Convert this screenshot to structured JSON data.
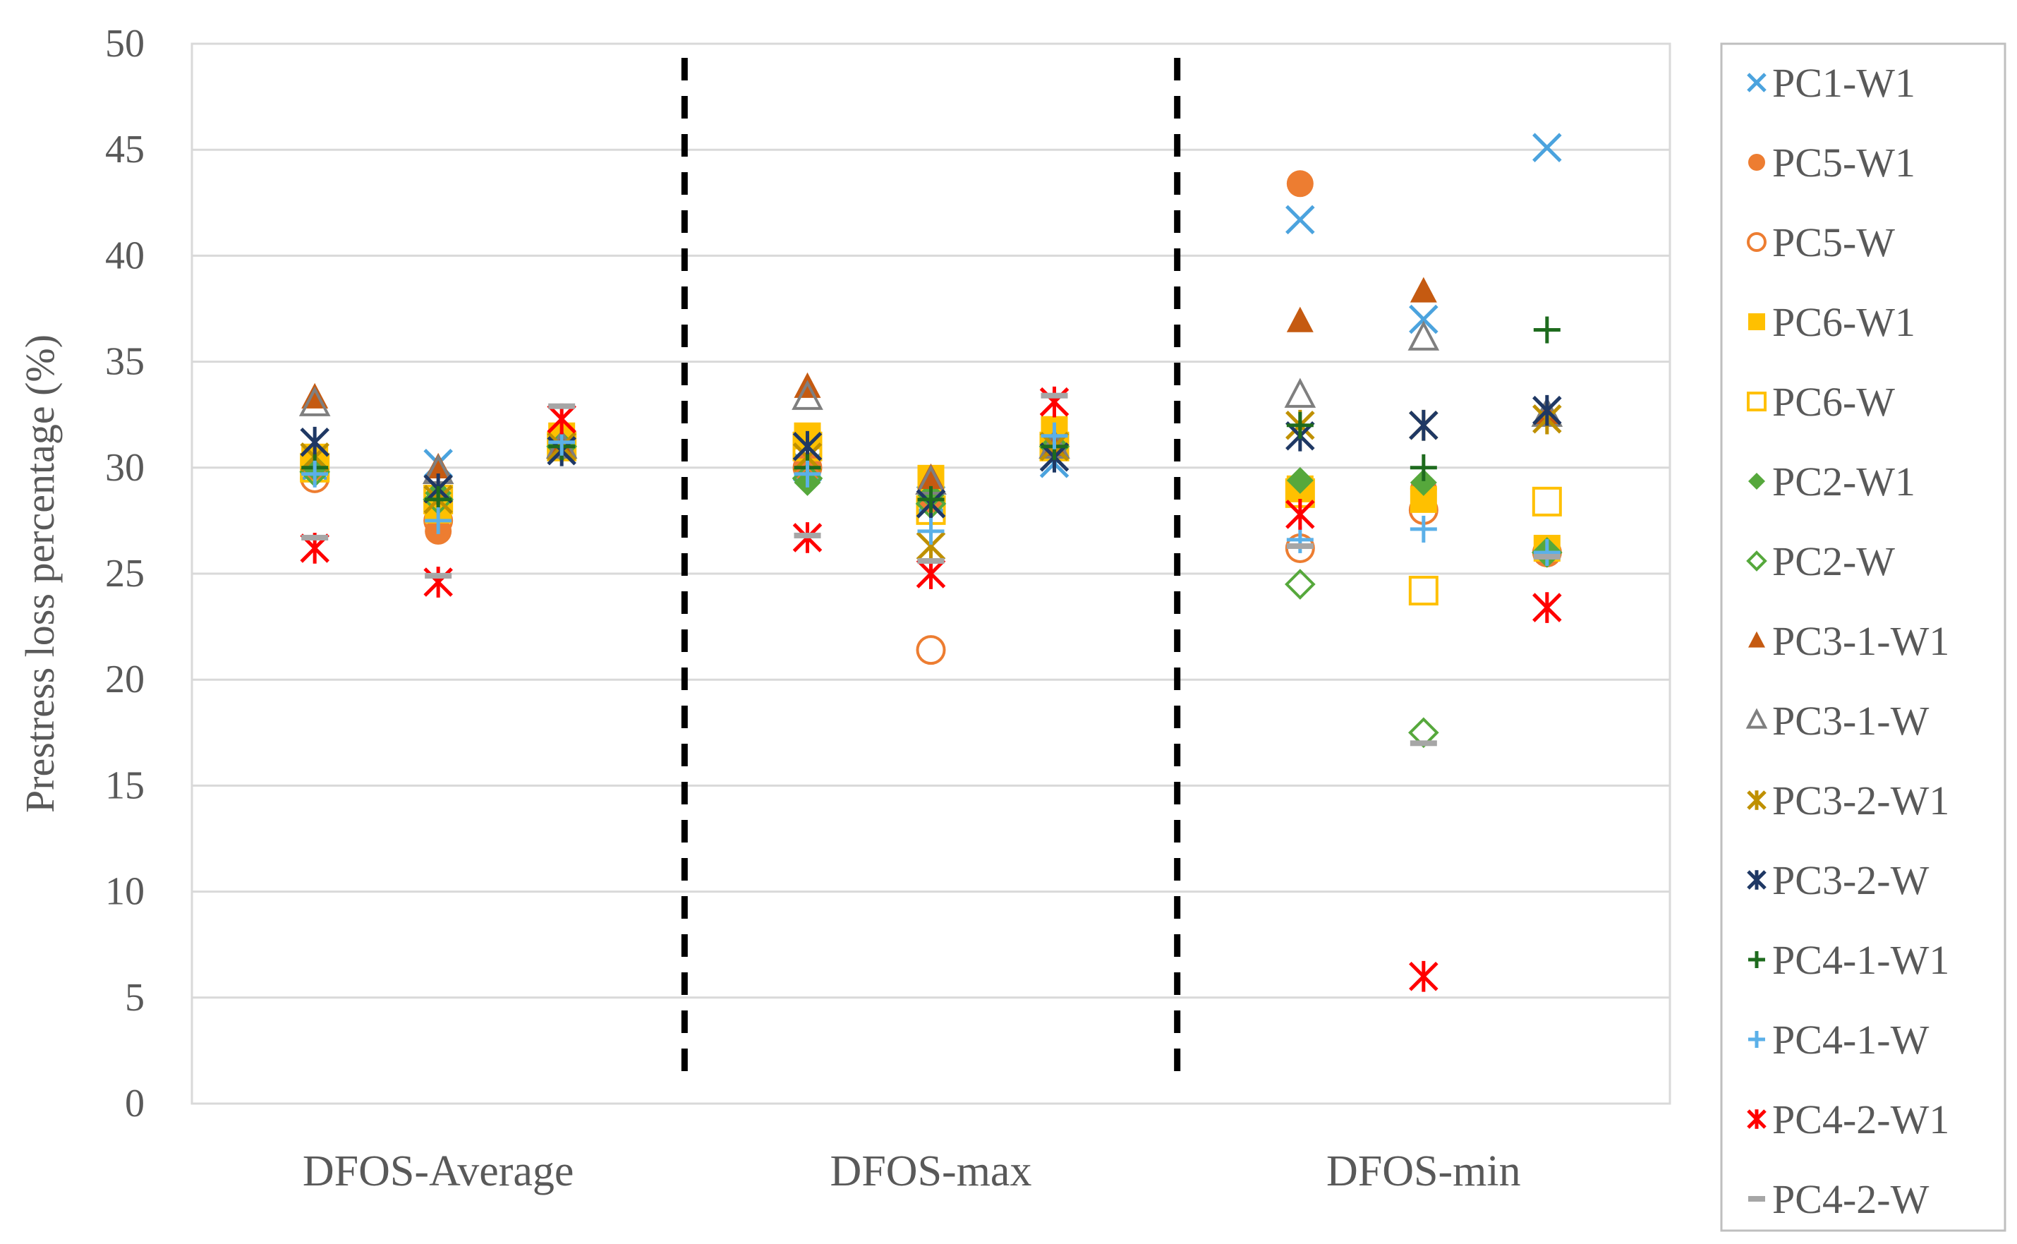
{
  "chart_data": {
    "type": "scatter",
    "title": "",
    "xlabel": "",
    "ylabel": "Prestress loss percentage (%)",
    "ylim": [
      0,
      50
    ],
    "yticks": [
      0,
      5,
      10,
      15,
      20,
      25,
      30,
      35,
      40,
      45,
      50
    ],
    "categories": [
      "DFOS-Average",
      "DFOS-max",
      "DFOS-min"
    ],
    "sub_positions": 3,
    "grid": true,
    "legend_position": "right",
    "separators": [
      {
        "after_category": "DFOS-Average",
        "style": "dashed"
      },
      {
        "after_category": "DFOS-max",
        "style": "dashed"
      }
    ],
    "series": [
      {
        "name": "PC1-W1",
        "color": "#4BA3DE",
        "marker": "x",
        "points": [
          [
            0,
            0,
            30.0
          ],
          [
            0,
            1,
            30.2
          ],
          [
            0,
            2,
            31.0
          ],
          [
            1,
            0,
            30.0
          ],
          [
            1,
            1,
            28.5
          ],
          [
            1,
            2,
            30.2
          ],
          [
            2,
            0,
            41.7
          ],
          [
            2,
            1,
            37.0
          ],
          [
            2,
            2,
            45.1
          ]
        ]
      },
      {
        "name": "PC5-W1",
        "color": "#ED7D31",
        "marker": "circle",
        "points": [
          [
            0,
            0,
            30.0
          ],
          [
            0,
            1,
            27.0
          ],
          [
            0,
            2,
            31.0
          ],
          [
            1,
            0,
            30.0
          ],
          [
            1,
            1,
            28.5
          ],
          [
            1,
            2,
            31.0
          ],
          [
            2,
            0,
            43.4
          ],
          [
            2,
            1,
            29.0
          ],
          [
            2,
            2,
            26.0
          ]
        ]
      },
      {
        "name": "PC5-W",
        "color": "#ED7D31",
        "marker": "circle-open",
        "points": [
          [
            0,
            0,
            29.5
          ],
          [
            0,
            1,
            27.5
          ],
          [
            0,
            2,
            31.0
          ],
          [
            1,
            0,
            30.0
          ],
          [
            1,
            1,
            21.4
          ],
          [
            1,
            2,
            31.0
          ],
          [
            2,
            0,
            26.2
          ],
          [
            2,
            1,
            28.0
          ],
          [
            2,
            2,
            26.0
          ]
        ]
      },
      {
        "name": "PC6-W1",
        "color": "#FFC000",
        "marker": "square",
        "points": [
          [
            0,
            0,
            30.5
          ],
          [
            0,
            1,
            28.0
          ],
          [
            0,
            2,
            31.5
          ],
          [
            1,
            0,
            31.5
          ],
          [
            1,
            1,
            29.5
          ],
          [
            1,
            2,
            31.8
          ],
          [
            2,
            0,
            29.0
          ],
          [
            2,
            1,
            28.5
          ],
          [
            2,
            2,
            26.2
          ]
        ]
      },
      {
        "name": "PC6-W",
        "color": "#FFC000",
        "marker": "square-open",
        "points": [
          [
            0,
            0,
            30.0
          ],
          [
            0,
            1,
            28.5
          ],
          [
            0,
            2,
            31.0
          ],
          [
            1,
            0,
            31.0
          ],
          [
            1,
            1,
            28.0
          ],
          [
            1,
            2,
            31.0
          ],
          [
            2,
            0,
            28.8
          ],
          [
            2,
            1,
            24.2
          ],
          [
            2,
            2,
            28.4
          ]
        ]
      },
      {
        "name": "PC2-W1",
        "color": "#56A83C",
        "marker": "diamond",
        "points": [
          [
            0,
            0,
            30.0
          ],
          [
            0,
            1,
            28.8
          ],
          [
            0,
            2,
            31.0
          ],
          [
            1,
            0,
            29.3
          ],
          [
            1,
            1,
            28.7
          ],
          [
            1,
            2,
            31.0
          ],
          [
            2,
            0,
            29.4
          ],
          [
            2,
            1,
            29.3
          ],
          [
            2,
            2,
            26.0
          ]
        ]
      },
      {
        "name": "PC2-W",
        "color": "#56A83C",
        "marker": "diamond-open",
        "points": [
          [
            0,
            0,
            29.8
          ],
          [
            0,
            1,
            28.5
          ],
          [
            0,
            2,
            31.0
          ],
          [
            1,
            0,
            29.5
          ],
          [
            1,
            1,
            28.3
          ],
          [
            1,
            2,
            31.0
          ],
          [
            2,
            0,
            24.5
          ],
          [
            2,
            1,
            17.5
          ],
          [
            2,
            2,
            26.0
          ]
        ]
      },
      {
        "name": "PC3-1-W1",
        "color": "#C55A11",
        "marker": "triangle",
        "points": [
          [
            0,
            0,
            33.3
          ],
          [
            0,
            1,
            30.0
          ],
          [
            0,
            2,
            31.0
          ],
          [
            1,
            0,
            33.8
          ],
          [
            1,
            1,
            29.5
          ],
          [
            1,
            2,
            31.0
          ],
          [
            2,
            0,
            36.9
          ],
          [
            2,
            1,
            38.3
          ],
          [
            2,
            2,
            32.5
          ]
        ]
      },
      {
        "name": "PC3-1-W",
        "color": "#7F7F7F",
        "marker": "triangle-open",
        "points": [
          [
            0,
            0,
            33.0
          ],
          [
            0,
            1,
            29.8
          ],
          [
            0,
            2,
            31.0
          ],
          [
            1,
            0,
            33.3
          ],
          [
            1,
            1,
            29.3
          ],
          [
            1,
            2,
            31.0
          ],
          [
            2,
            0,
            33.4
          ],
          [
            2,
            1,
            36.1
          ],
          [
            2,
            2,
            32.5
          ]
        ]
      },
      {
        "name": "PC3-2-W1",
        "color": "#BF9000",
        "marker": "star",
        "points": [
          [
            0,
            0,
            30.5
          ],
          [
            0,
            1,
            28.5
          ],
          [
            0,
            2,
            31.0
          ],
          [
            1,
            0,
            30.5
          ],
          [
            1,
            1,
            26.3
          ],
          [
            1,
            2,
            31.0
          ],
          [
            2,
            0,
            32.0
          ],
          [
            2,
            1,
            32.0
          ],
          [
            2,
            2,
            32.3
          ]
        ]
      },
      {
        "name": "PC3-2-W",
        "color": "#1F3864",
        "marker": "star",
        "points": [
          [
            0,
            0,
            31.2
          ],
          [
            0,
            1,
            29.0
          ],
          [
            0,
            2,
            30.8
          ],
          [
            1,
            0,
            31.0
          ],
          [
            1,
            1,
            28.3
          ],
          [
            1,
            2,
            30.5
          ],
          [
            2,
            0,
            31.5
          ],
          [
            2,
            1,
            32.0
          ],
          [
            2,
            2,
            32.7
          ]
        ]
      },
      {
        "name": "PC4-1-W1",
        "color": "#1E6B1E",
        "marker": "plus",
        "points": [
          [
            0,
            0,
            30.0
          ],
          [
            0,
            1,
            28.5
          ],
          [
            0,
            2,
            31.0
          ],
          [
            1,
            0,
            30.0
          ],
          [
            1,
            1,
            28.5
          ],
          [
            1,
            2,
            31.0
          ],
          [
            2,
            0,
            32.0
          ],
          [
            2,
            1,
            30.0
          ],
          [
            2,
            2,
            36.5
          ]
        ]
      },
      {
        "name": "PC4-1-W",
        "color": "#5BB0E8",
        "marker": "plus",
        "points": [
          [
            0,
            0,
            29.7
          ],
          [
            0,
            1,
            27.5
          ],
          [
            0,
            2,
            31.2
          ],
          [
            1,
            0,
            29.7
          ],
          [
            1,
            1,
            27.0
          ],
          [
            1,
            2,
            31.5
          ],
          [
            2,
            0,
            26.6
          ],
          [
            2,
            1,
            27.1
          ],
          [
            2,
            2,
            26.0
          ]
        ]
      },
      {
        "name": "PC4-2-W1",
        "color": "#FF0000",
        "marker": "star",
        "points": [
          [
            0,
            0,
            26.2
          ],
          [
            0,
            1,
            24.6
          ],
          [
            0,
            2,
            32.3
          ],
          [
            1,
            0,
            26.7
          ],
          [
            1,
            1,
            25.0
          ],
          [
            1,
            2,
            33.1
          ],
          [
            2,
            0,
            27.8
          ],
          [
            2,
            1,
            6.0
          ],
          [
            2,
            2,
            23.4
          ]
        ]
      },
      {
        "name": "PC4-2-W",
        "color": "#A6A6A6",
        "marker": "dash",
        "points": [
          [
            0,
            0,
            26.7
          ],
          [
            0,
            1,
            24.9
          ],
          [
            0,
            2,
            32.9
          ],
          [
            1,
            0,
            26.8
          ],
          [
            1,
            1,
            25.6
          ],
          [
            1,
            2,
            33.4
          ],
          [
            2,
            0,
            26.3
          ],
          [
            2,
            1,
            17.0
          ],
          [
            2,
            2,
            25.8
          ]
        ]
      }
    ]
  }
}
